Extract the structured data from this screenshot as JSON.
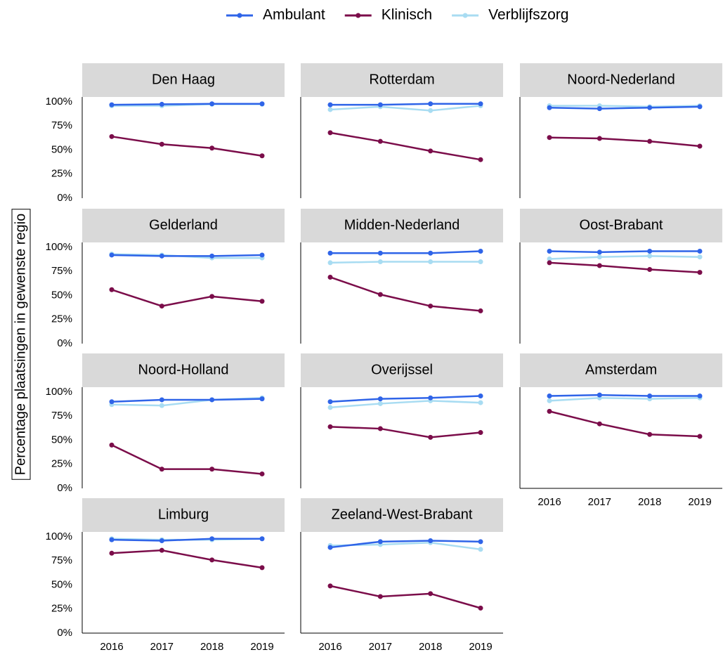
{
  "chart_data": {
    "type": "line",
    "ylabel": "Percentage plaatsingen in gewenste regio",
    "x": [
      2016,
      2017,
      2018,
      2019
    ],
    "ylim": [
      0,
      100
    ],
    "yticks": [
      {
        "value": 0,
        "label": "0%"
      },
      {
        "value": 25,
        "label": "25%"
      },
      {
        "value": 50,
        "label": "50%"
      },
      {
        "value": 75,
        "label": "75%"
      },
      {
        "value": 100,
        "label": "100%"
      }
    ],
    "legend": "top",
    "series": [
      {
        "name": "Ambulant",
        "color": "#2f64e8"
      },
      {
        "name": "Klinisch",
        "color": "#7b0d4a"
      },
      {
        "name": "Verblijfszorg",
        "color": "#a8dcf2"
      }
    ],
    "panels": [
      {
        "title": "Den Haag",
        "series": [
          {
            "values": [
              97,
              97.5,
              98,
              98
            ]
          },
          {
            "values": [
              64,
              56,
              52,
              44
            ]
          },
          {
            "values": [
              96,
              96,
              97.5,
              97.5
            ]
          }
        ]
      },
      {
        "title": "Rotterdam",
        "series": [
          {
            "values": [
              97,
              97,
              98,
              98
            ]
          },
          {
            "values": [
              68,
              59,
              49,
              40
            ]
          },
          {
            "values": [
              92,
              95,
              91,
              96
            ]
          }
        ]
      },
      {
        "title": "Noord-Nederland",
        "series": [
          {
            "values": [
              94,
              93,
              94,
              95
            ]
          },
          {
            "values": [
              63,
              62,
              59,
              54
            ]
          },
          {
            "values": [
              96,
              96,
              95,
              96
            ]
          }
        ]
      },
      {
        "title": "Gelderland",
        "series": [
          {
            "values": [
              92,
              91,
              91,
              92
            ]
          },
          {
            "values": [
              56,
              39,
              49,
              44
            ]
          },
          {
            "values": [
              93,
              92,
              89,
              89
            ]
          }
        ]
      },
      {
        "title": "Midden-Nederland",
        "series": [
          {
            "values": [
              94,
              94,
              94,
              96
            ]
          },
          {
            "values": [
              69,
              51,
              39,
              34
            ]
          },
          {
            "values": [
              84,
              85,
              85,
              85
            ]
          }
        ]
      },
      {
        "title": "Oost-Brabant",
        "series": [
          {
            "values": [
              96,
              95,
              96,
              96
            ]
          },
          {
            "values": [
              84,
              81,
              77,
              74
            ]
          },
          {
            "values": [
              88,
              90,
              91,
              90
            ]
          }
        ]
      },
      {
        "title": "Noord-Holland",
        "series": [
          {
            "values": [
              90,
              92,
              92,
              93
            ]
          },
          {
            "values": [
              45,
              20,
              20,
              15
            ]
          },
          {
            "values": [
              87,
              86,
              92,
              94
            ]
          }
        ]
      },
      {
        "title": "Overijssel",
        "series": [
          {
            "values": [
              90,
              93,
              94,
              96
            ]
          },
          {
            "values": [
              64,
              62,
              53,
              58
            ]
          },
          {
            "values": [
              84,
              88,
              91,
              89
            ]
          }
        ]
      },
      {
        "title": "Amsterdam",
        "series": [
          {
            "values": [
              96,
              97,
              96,
              96
            ]
          },
          {
            "values": [
              80,
              67,
              56,
              54
            ]
          },
          {
            "values": [
              91,
              94,
              93,
              94
            ]
          }
        ]
      },
      {
        "title": "Limburg",
        "series": [
          {
            "values": [
              97,
              96,
              98,
              98
            ]
          },
          {
            "values": [
              83,
              86,
              76,
              68
            ]
          },
          {
            "values": [
              98,
              97,
              97,
              98
            ]
          }
        ]
      },
      {
        "title": "Zeeland-West-Brabant",
        "series": [
          {
            "values": [
              89,
              95,
              96,
              95
            ]
          },
          {
            "values": [
              49,
              38,
              41,
              26
            ]
          },
          {
            "values": [
              91,
              92,
              94,
              87
            ]
          }
        ]
      }
    ]
  }
}
